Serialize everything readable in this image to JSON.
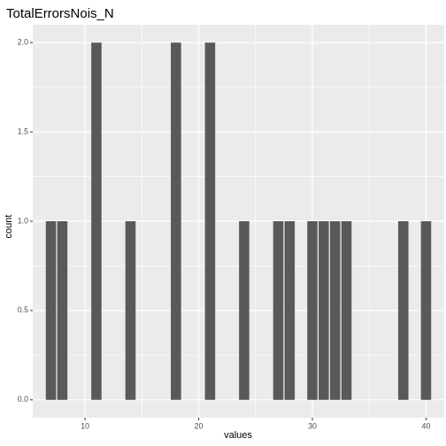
{
  "chart_data": {
    "type": "bar",
    "title": "TotalErrorsNois_N",
    "xlabel": "values",
    "ylabel": "count",
    "xlim": [
      5.4,
      41.6
    ],
    "ylim": [
      -0.1,
      2.1
    ],
    "xticks": [
      10,
      20,
      30,
      40
    ],
    "xtick_labels": [
      "10",
      "20",
      "30",
      "40"
    ],
    "yticks": [
      0,
      0.5,
      1,
      1.5,
      2
    ],
    "ytick_labels": [
      "0.0",
      "0.5",
      "1.0",
      "1.5",
      "2.0"
    ],
    "bin_width": 0.9,
    "x": [
      7,
      8,
      11,
      14,
      18,
      21,
      24,
      27,
      28,
      30,
      31,
      32,
      33,
      38,
      40
    ],
    "values": [
      1,
      1,
      2,
      1,
      2,
      2,
      1,
      1,
      1,
      1,
      1,
      1,
      1,
      1,
      1
    ],
    "grid": true,
    "colors": {
      "panel_background": "#ebebeb",
      "grid_major": "#ffffff",
      "bar_fill": "#595959"
    }
  }
}
